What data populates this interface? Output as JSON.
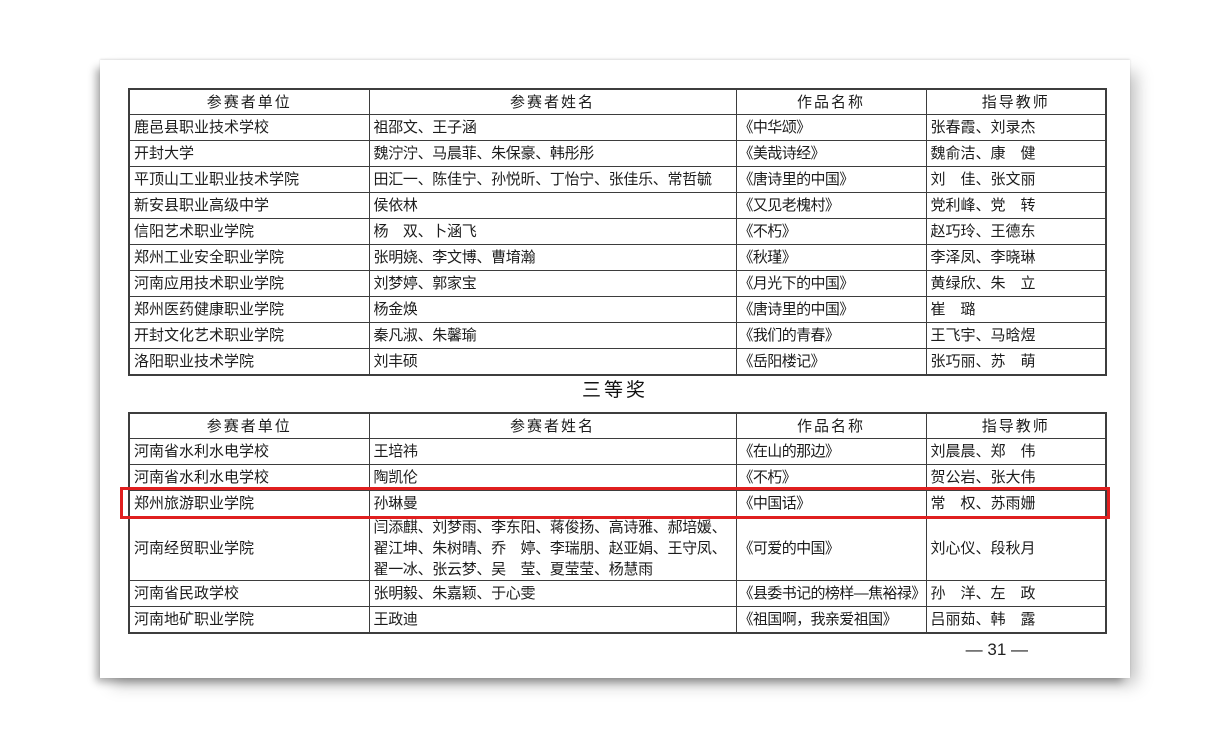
{
  "document": {
    "section_title": "三等奖",
    "page_number": "— 31 —"
  },
  "highlight": {
    "border_color": "#e01f1f"
  },
  "tables": [
    {
      "headers": [
        "参赛者单位",
        "参赛者姓名",
        "作品名称",
        "指导教师"
      ],
      "rows": [
        {
          "unit": "鹿邑县职业技术学校",
          "names": "祖邵文、王子涵",
          "work": "《中华颂》",
          "teachers": "张春霞、刘录杰"
        },
        {
          "unit": "开封大学",
          "names": "魏泞泞、马晨菲、朱保豪、韩彤彤",
          "work": "《美哉诗经》",
          "teachers": "魏俞洁、康　健"
        },
        {
          "unit": "平顶山工业职业技术学院",
          "names": "田汇一、陈佳宁、孙悦昕、丁怡宁、张佳乐、常哲毓",
          "work": "《唐诗里的中国》",
          "teachers": "刘　佳、张文丽"
        },
        {
          "unit": "新安县职业高级中学",
          "names": "侯依林",
          "work": "《又见老槐村》",
          "teachers": "党利峰、党　转"
        },
        {
          "unit": "信阳艺术职业学院",
          "names": "杨　双、卜涵飞",
          "work": "《不朽》",
          "teachers": "赵巧玲、王德东"
        },
        {
          "unit": "郑州工业安全职业学院",
          "names": "张明娆、李文博、曹堉瀚",
          "work": "《秋瑾》",
          "teachers": "李泽凤、李晓琳"
        },
        {
          "unit": "河南应用技术职业学院",
          "names": "刘梦婷、郭家宝",
          "work": "《月光下的中国》",
          "teachers": "黄绿欣、朱　立"
        },
        {
          "unit": "郑州医药健康职业学院",
          "names": "杨金焕",
          "work": "《唐诗里的中国》",
          "teachers": "崔　璐"
        },
        {
          "unit": "开封文化艺术职业学院",
          "names": "秦凡淑、朱馨瑜",
          "work": "《我们的青春》",
          "teachers": "王飞宇、马晗煜"
        },
        {
          "unit": "洛阳职业技术学院",
          "names": "刘丰硕",
          "work": "《岳阳楼记》",
          "teachers": "张巧丽、苏　萌"
        }
      ]
    },
    {
      "headers": [
        "参赛者单位",
        "参赛者姓名",
        "作品名称",
        "指导教师"
      ],
      "highlighted_row": 2,
      "rows": [
        {
          "unit": "河南省水利水电学校",
          "names": "王培祎",
          "work": "《在山的那边》",
          "teachers": "刘晨晨、郑　伟"
        },
        {
          "unit": "河南省水利水电学校",
          "names": "陶凯伦",
          "work": "《不朽》",
          "teachers": "贺公岩、张大伟"
        },
        {
          "unit": "郑州旅游职业学院",
          "names": "孙琳曼",
          "work": "《中国话》",
          "teachers": "常　权、苏雨姗"
        },
        {
          "unit": "河南经贸职业学院",
          "names": "闫添麒、刘梦雨、李东阳、蒋俊扬、高诗雅、郝培媛、翟江坤、朱树晴、乔　婷、李瑞朋、赵亚娟、王守凤、翟一冰、张云梦、吴　莹、夏莹莹、杨慧雨",
          "work": "《可爱的中国》",
          "teachers": "刘心仪、段秋月"
        },
        {
          "unit": "河南省民政学校",
          "names": "张明毅、朱嘉颖、于心雯",
          "work": "《县委书记的榜样—焦裕禄》",
          "teachers": "孙　洋、左　政"
        },
        {
          "unit": "河南地矿职业学院",
          "names": "王政迪",
          "work": "《祖国啊，我亲爱祖国》",
          "teachers": "吕丽茹、韩　露"
        }
      ]
    }
  ]
}
